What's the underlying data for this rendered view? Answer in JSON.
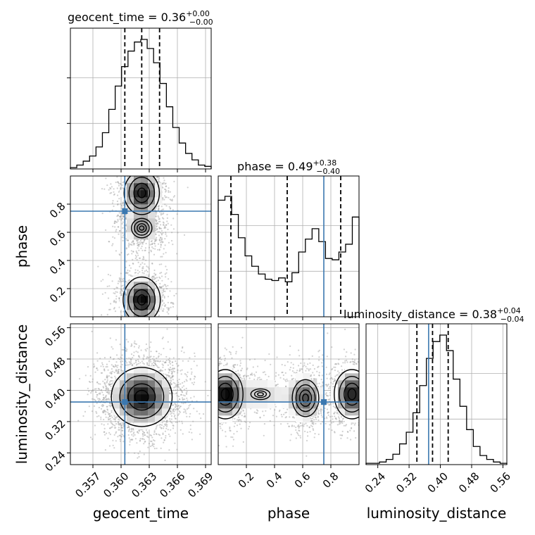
{
  "chart_data": {
    "type": "corner",
    "parameters": [
      "geocent_time",
      "phase",
      "luminosity_distance"
    ],
    "truths": {
      "geocent_time": 0.3604,
      "phase": 0.75,
      "luminosity_distance": 0.37
    },
    "colors": {
      "truth": "#3b78b0",
      "hist": "#000000",
      "grid": "#b0b0b0",
      "scatter": "#9a9a9a"
    },
    "grid": true,
    "titles": [
      {
        "param": "geocent_time",
        "text": "geocent_time = 0.36",
        "sup": "+0.00",
        "sub": "−0.00"
      },
      {
        "param": "phase",
        "text": "phase = 0.49",
        "sup": "+0.38",
        "sub": "−0.40"
      },
      {
        "param": "luminosity_distance",
        "text": "luminosity_distance = 0.38",
        "sup": "+0.04",
        "sub": "−0.04"
      }
    ],
    "axes": {
      "geocent_time": {
        "label": "geocent_time",
        "range": [
          0.3546,
          0.3696
        ],
        "ticks": [
          0.357,
          0.36,
          0.363,
          0.366,
          0.369
        ],
        "tick_labels": [
          "0.357",
          "0.360",
          "0.363",
          "0.366",
          "0.369"
        ]
      },
      "phase": {
        "label": "phase",
        "range": [
          0.0,
          1.0
        ],
        "ticks": [
          0.2,
          0.4,
          0.6,
          0.8
        ],
        "tick_labels": [
          "0.2",
          "0.4",
          "0.6",
          "0.8"
        ]
      },
      "luminosity_distance": {
        "label": "luminosity_distance",
        "range": [
          0.21,
          0.57
        ],
        "ticks": [
          0.24,
          0.32,
          0.4,
          0.48,
          0.56
        ],
        "tick_labels": [
          "0.24",
          "0.32",
          "0.40",
          "0.48",
          "0.56"
        ]
      }
    },
    "histograms": [
      {
        "param": "geocent_time",
        "bins": [
          0.3546,
          0.3696
        ],
        "counts": [
          0.01,
          0.03,
          0.06,
          0.1,
          0.17,
          0.28,
          0.46,
          0.64,
          0.79,
          0.91,
          0.98,
          1.0,
          0.93,
          0.82,
          0.66,
          0.48,
          0.32,
          0.2,
          0.12,
          0.07,
          0.03,
          0.02
        ],
        "quantiles": [
          0.3604,
          0.3622,
          0.3641
        ]
      },
      {
        "param": "phase",
        "bins": [
          0.0,
          1.0
        ],
        "counts": [
          0.9,
          0.93,
          0.79,
          0.61,
          0.47,
          0.39,
          0.33,
          0.29,
          0.28,
          0.3,
          0.27,
          0.34,
          0.5,
          0.6,
          0.68,
          0.58,
          0.45,
          0.44,
          0.5,
          0.56,
          0.77
        ],
        "quantiles": [
          0.09,
          0.49,
          0.87
        ]
      },
      {
        "param": "luminosity_distance",
        "bins": [
          0.21,
          0.57
        ],
        "counts": [
          0.01,
          0.01,
          0.02,
          0.04,
          0.08,
          0.16,
          0.25,
          0.4,
          0.61,
          0.82,
          0.95,
          1.0,
          0.88,
          0.66,
          0.45,
          0.27,
          0.14,
          0.07,
          0.04,
          0.02,
          0.01
        ],
        "quantiles": [
          0.34,
          0.38,
          0.42
        ]
      }
    ],
    "density_components": {
      "phase_vs_geocent_time": [
        {
          "mx": 0.3622,
          "sx": 0.0011,
          "my": 0.12,
          "sy": 0.09,
          "w": 1.0
        },
        {
          "mx": 0.3622,
          "sx": 0.0011,
          "my": 0.88,
          "sy": 0.09,
          "w": 0.95
        },
        {
          "mx": 0.3622,
          "sx": 0.0011,
          "my": 0.63,
          "sy": 0.07,
          "w": 0.55
        }
      ],
      "luminosity_distance_vs_geocent_time": [
        {
          "mx": 0.3622,
          "sx": 0.0018,
          "my": 0.383,
          "sy": 0.042,
          "w": 1.0
        }
      ],
      "luminosity_distance_vs_phase": [
        {
          "mx": 0.05,
          "sx": 0.07,
          "my": 0.39,
          "sy": 0.035,
          "w": 1.0
        },
        {
          "mx": 0.95,
          "sx": 0.07,
          "my": 0.39,
          "sy": 0.035,
          "w": 1.0
        },
        {
          "mx": 0.62,
          "sx": 0.07,
          "my": 0.38,
          "sy": 0.035,
          "w": 0.75
        },
        {
          "mx": 0.3,
          "sx": 0.15,
          "my": 0.39,
          "sy": 0.03,
          "w": 0.35
        }
      ]
    }
  }
}
